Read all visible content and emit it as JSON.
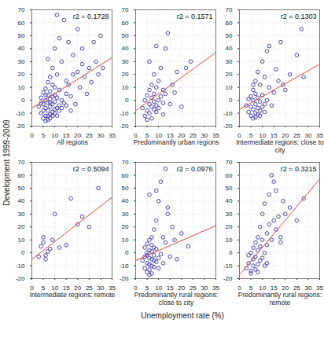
{
  "chart_data": {
    "type": "scatter",
    "xlabel": "Unemployment rate (%)",
    "ylabel": "Development 1999-2009",
    "panels": [
      {
        "type": "scatter",
        "title": "All regions",
        "annotation": "r2 = 0.1728",
        "xlim": [
          0,
          35
        ],
        "ylim": [
          -20,
          70
        ],
        "xticks": [
          0,
          5,
          10,
          15,
          20,
          25,
          30,
          35
        ],
        "yticks": [
          -20,
          -10,
          0,
          10,
          20,
          30,
          40,
          50,
          60,
          70
        ],
        "grid": true,
        "series": [
          {
            "type": "scatter",
            "marker": "circle",
            "color": "#3333aa",
            "x": [
              3,
              4,
              4,
              5,
              5,
              5,
              6,
              6,
              6,
              6,
              7,
              7,
              7,
              7,
              7,
              8,
              8,
              8,
              8,
              8,
              9,
              9,
              9,
              9,
              10,
              10,
              10,
              10,
              11,
              11,
              11,
              12,
              12,
              12,
              13,
              13,
              14,
              14,
              15,
              15,
              16,
              16,
              17,
              18,
              18,
              19,
              20,
              20,
              21,
              22,
              22,
              23,
              24,
              25,
              26,
              27,
              28,
              29,
              30,
              31,
              5,
              6,
              7,
              8,
              9,
              10,
              11,
              12,
              4,
              6,
              8,
              10,
              13,
              15,
              17,
              9,
              11,
              7
            ],
            "values": [
              -5,
              -10,
              2,
              -14,
              -3,
              6,
              -12,
              -6,
              0,
              9,
              -15,
              -8,
              -2,
              4,
              14,
              -11,
              -5,
              1,
              7,
              18,
              -9,
              -3,
              3,
              25,
              -7,
              -1,
              10,
              40,
              -6,
              2,
              20,
              -4,
              8,
              48,
              0,
              30,
              -2,
              62,
              5,
              15,
              12,
              45,
              3,
              20,
              35,
              -3,
              22,
              55,
              10,
              28,
              40,
              18,
              5,
              25,
              14,
              45,
              30,
              20,
              50,
              25,
              -8,
              4,
              -12,
              -14,
              12,
              -10,
              -12,
              -8,
              -2,
              -16,
              -2,
              4,
              -6,
              -4,
              -8,
              -12,
              66,
              32
            ]
          },
          {
            "type": "line",
            "line_style": "solid",
            "color": "#e8443a",
            "x": [
              0,
              35
            ],
            "values": [
              -6,
              33
            ]
          }
        ]
      },
      {
        "type": "scatter",
        "title": "Predominantly urban regions",
        "annotation": "r2 = 0.1571",
        "xlim": [
          0,
          35
        ],
        "ylim": [
          -20,
          70
        ],
        "xticks": [
          0,
          5,
          10,
          15,
          20,
          25,
          30,
          35
        ],
        "yticks": [
          -20,
          -10,
          0,
          10,
          20,
          30,
          40,
          50,
          60,
          70
        ],
        "grid": true,
        "series": [
          {
            "type": "scatter",
            "marker": "circle",
            "color": "#3333aa",
            "x": [
              3,
              4,
              4,
              5,
              5,
              5,
              6,
              6,
              6,
              7,
              7,
              7,
              7,
              8,
              8,
              8,
              8,
              9,
              9,
              9,
              10,
              10,
              10,
              11,
              11,
              12,
              12,
              13,
              13,
              14,
              15,
              16,
              17,
              18,
              20,
              22,
              24,
              6,
              9,
              12
            ],
            "values": [
              -6,
              -12,
              0,
              -8,
              4,
              -15,
              -3,
              8,
              -10,
              -5,
              2,
              12,
              -14,
              -7,
              5,
              -1,
              20,
              -4,
              10,
              -9,
              0,
              15,
              -6,
              3,
              25,
              -2,
              8,
              40,
              5,
              52,
              -3,
              12,
              6,
              22,
              -5,
              25,
              30,
              30,
              42,
              -11
            ]
          },
          {
            "type": "line",
            "line_style": "solid",
            "color": "#e8443a",
            "x": [
              0,
              35
            ],
            "values": [
              -8,
              37
            ]
          }
        ]
      },
      {
        "type": "scatter",
        "title": "Intermediate regions: close to city",
        "annotation": "r2 = 0.1303",
        "xlim": [
          0,
          35
        ],
        "ylim": [
          -20,
          70
        ],
        "xticks": [
          0,
          5,
          10,
          15,
          20,
          25,
          30,
          35
        ],
        "yticks": [
          -20,
          -10,
          0,
          10,
          20,
          30,
          40,
          50,
          60,
          70
        ],
        "grid": true,
        "series": [
          {
            "type": "scatter",
            "marker": "circle",
            "color": "#3333aa",
            "x": [
              3,
              4,
              4,
              5,
              5,
              5,
              6,
              6,
              6,
              6,
              7,
              7,
              7,
              7,
              8,
              8,
              8,
              8,
              9,
              9,
              9,
              10,
              10,
              10,
              11,
              11,
              12,
              12,
              13,
              14,
              15,
              16,
              17,
              18,
              19,
              20,
              22,
              25,
              27,
              28,
              7,
              9,
              11,
              13,
              6
            ],
            "values": [
              -4,
              -9,
              1,
              -12,
              -5,
              3,
              -14,
              -7,
              0,
              8,
              -10,
              -3,
              5,
              15,
              -11,
              -6,
              2,
              22,
              -8,
              -1,
              12,
              -5,
              4,
              30,
              -3,
              18,
              0,
              38,
              10,
              -4,
              6,
              24,
              15,
              45,
              12,
              8,
              20,
              35,
              55,
              18,
              -13,
              -12,
              -9,
              42,
              12
            ]
          },
          {
            "type": "line",
            "line_style": "solid",
            "color": "#e8443a",
            "x": [
              0,
              35
            ],
            "values": [
              -7,
              28
            ]
          }
        ]
      },
      {
        "type": "scatter",
        "title": "Intermediate regions: remote",
        "annotation": "r2 = 0.5094",
        "xlim": [
          0,
          35
        ],
        "ylim": [
          -20,
          70
        ],
        "xticks": [
          0,
          5,
          10,
          15,
          20,
          25,
          30,
          35
        ],
        "yticks": [
          -20,
          -10,
          0,
          10,
          20,
          30,
          40,
          50,
          60,
          70
        ],
        "grid": true,
        "series": [
          {
            "type": "scatter",
            "marker": "circle",
            "color": "#3333aa",
            "x": [
              3,
              4,
              5,
              5,
              6,
              6,
              7,
              8,
              9,
              10,
              12,
              15,
              17,
              20,
              22,
              25,
              29
            ],
            "values": [
              -3,
              5,
              8,
              12,
              -2,
              -5,
              1,
              3,
              10,
              30,
              4,
              6,
              42,
              22,
              28,
              20,
              50
            ]
          },
          {
            "type": "line",
            "line_style": "solid",
            "color": "#e8443a",
            "x": [
              0,
              35
            ],
            "values": [
              -5,
              43
            ]
          }
        ]
      },
      {
        "type": "scatter",
        "title": "Predominantly rural regions: close to city",
        "annotation": "r2 = 0.0976",
        "xlim": [
          0,
          35
        ],
        "ylim": [
          -20,
          70
        ],
        "xticks": [
          0,
          5,
          10,
          15,
          20,
          25,
          30,
          35
        ],
        "yticks": [
          -20,
          -10,
          0,
          10,
          20,
          30,
          40,
          50,
          60,
          70
        ],
        "grid": true,
        "series": [
          {
            "type": "scatter",
            "marker": "circle",
            "color": "#3333aa",
            "x": [
              3,
              4,
              4,
              4,
              5,
              5,
              5,
              5,
              6,
              6,
              6,
              6,
              6,
              7,
              7,
              7,
              7,
              7,
              8,
              8,
              8,
              8,
              9,
              9,
              9,
              10,
              10,
              11,
              11,
              12,
              13,
              13,
              14,
              15,
              16,
              17,
              18,
              20,
              23,
              5,
              6,
              7,
              8,
              9,
              10,
              12,
              14,
              6
            ],
            "values": [
              -6,
              -12,
              -3,
              4,
              -15,
              -8,
              0,
              7,
              -13,
              -9,
              -4,
              2,
              10,
              -16,
              -10,
              -5,
              1,
              6,
              -11,
              -6,
              -2,
              18,
              -7,
              3,
              25,
              -4,
              40,
              -1,
              55,
              12,
              65,
              8,
              30,
              -3,
              20,
              10,
              -5,
              15,
              5,
              -2,
              -17,
              12,
              4,
              48,
              -12,
              -8,
              35,
              45
            ]
          },
          {
            "type": "line",
            "line_style": "solid",
            "color": "#e8443a",
            "x": [
              0,
              35
            ],
            "values": [
              -6,
              21
            ]
          }
        ]
      },
      {
        "type": "scatter",
        "title": "Predominantly rural regions: remote",
        "annotation": "r2 = 0.3215",
        "xlim": [
          0,
          35
        ],
        "ylim": [
          -20,
          70
        ],
        "xticks": [
          0,
          5,
          10,
          15,
          20,
          25,
          30,
          35
        ],
        "yticks": [
          -20,
          -10,
          0,
          10,
          20,
          30,
          40,
          50,
          60,
          70
        ],
        "grid": true,
        "series": [
          {
            "type": "scatter",
            "marker": "circle",
            "color": "#3333aa",
            "x": [
              3,
              4,
              4,
              5,
              5,
              6,
              6,
              6,
              7,
              7,
              7,
              8,
              8,
              8,
              9,
              9,
              9,
              10,
              10,
              10,
              11,
              11,
              12,
              12,
              13,
              13,
              14,
              14,
              15,
              15,
              16,
              17,
              18,
              19,
              20,
              22,
              25,
              28,
              5,
              8,
              11,
              12,
              16,
              18
            ],
            "values": [
              -12,
              -8,
              -2,
              -14,
              0,
              -10,
              -5,
              4,
              -13,
              -3,
              8,
              -9,
              2,
              12,
              -6,
              5,
              20,
              -4,
              10,
              30,
              0,
              38,
              6,
              15,
              45,
              22,
              10,
              60,
              25,
              55,
              18,
              28,
              8,
              40,
              30,
              35,
              25,
              42,
              -16,
              -15,
              -10,
              -8,
              48,
              12
            ]
          },
          {
            "type": "line",
            "line_style": "solid",
            "color": "#e8443a",
            "x": [
              0,
              35
            ],
            "values": [
              -17,
              57
            ]
          }
        ]
      }
    ]
  }
}
